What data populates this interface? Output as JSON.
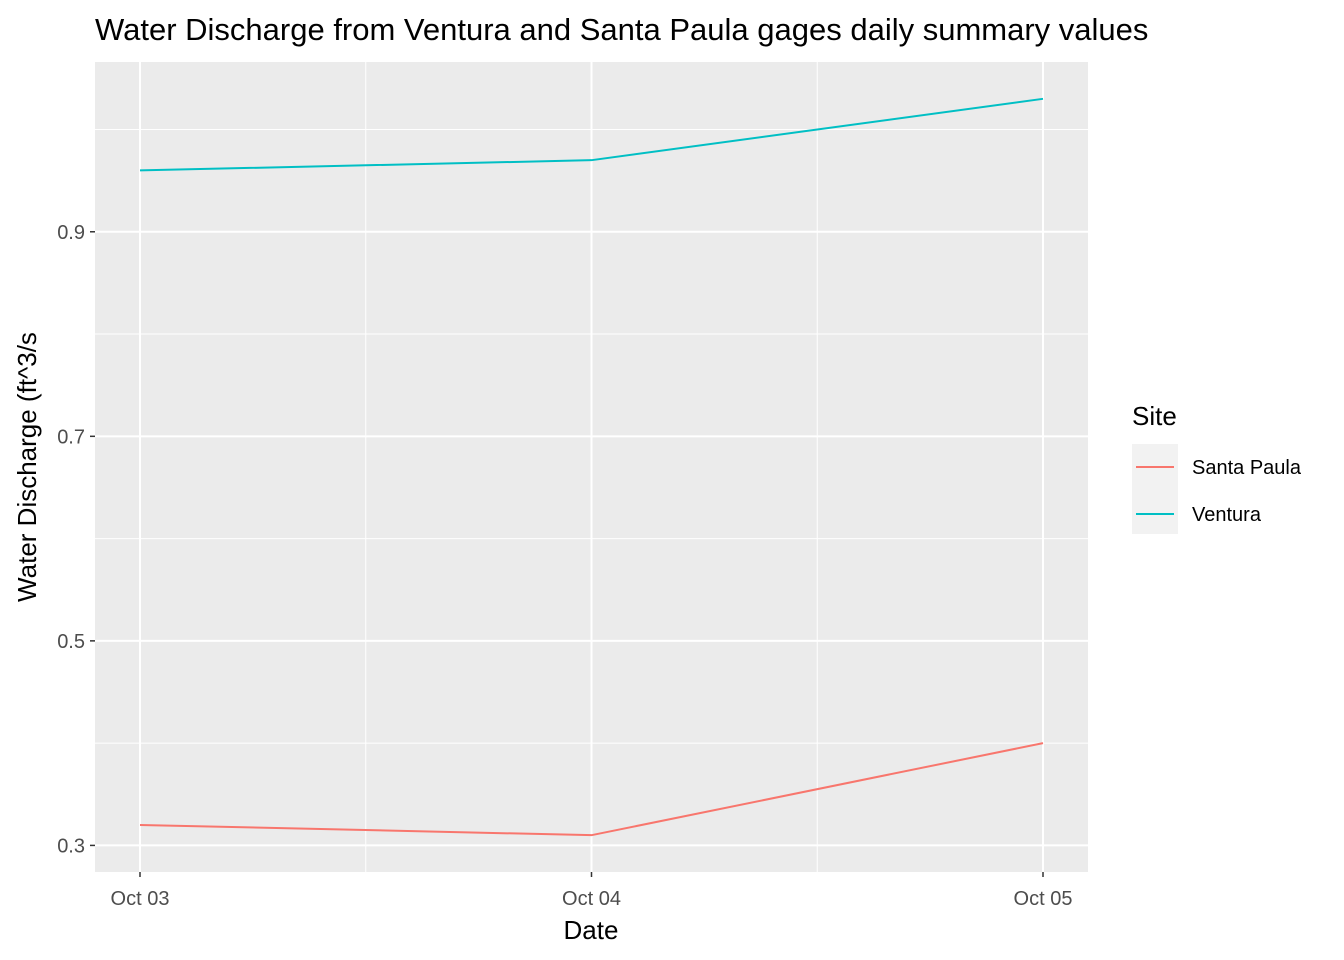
{
  "chart_data": {
    "type": "line",
    "title": "Water Discharge from Ventura and Santa Paula gages daily summary values",
    "xlabel": "Date",
    "ylabel": "Water Discharge (ft^3/s",
    "x": [
      "Oct 03",
      "Oct 04",
      "Oct 05"
    ],
    "y_ticks": [
      0.3,
      0.5,
      0.7,
      0.9
    ],
    "y_tick_labels": [
      "0.3",
      "0.5",
      "0.7",
      "0.9"
    ],
    "ylim": [
      0.274,
      1.066
    ],
    "grid": true,
    "legend": {
      "title": "Site",
      "placement": "right"
    },
    "series": [
      {
        "name": "Santa Paula",
        "color": "#F8766D",
        "values": [
          0.32,
          0.31,
          0.4
        ]
      },
      {
        "name": "Ventura",
        "color": "#00BFC4",
        "values": [
          0.96,
          0.97,
          1.03
        ]
      }
    ]
  }
}
